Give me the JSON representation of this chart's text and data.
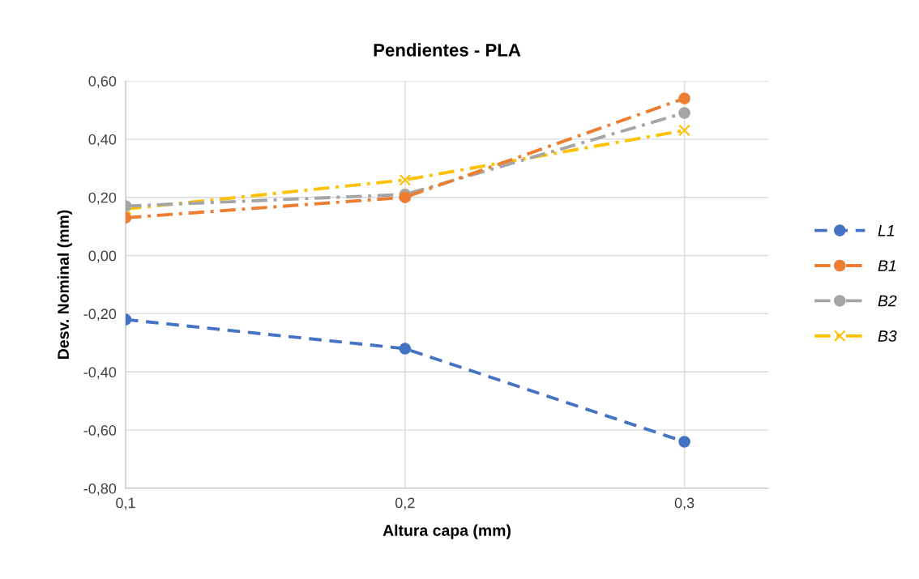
{
  "chart_data": {
    "type": "line",
    "title": "Pendientes - PLA",
    "xlabel": "Altura capa (mm)",
    "ylabel": "Desv. Nominal (mm)",
    "x": [
      0.1,
      0.2,
      0.3
    ],
    "series": [
      {
        "name": "L1",
        "color": "#4472c4",
        "values": [
          -0.22,
          -0.32,
          -0.64
        ],
        "marker": "circle",
        "line_style": "dashed"
      },
      {
        "name": "B1",
        "color": "#ed7d31",
        "values": [
          0.13,
          0.2,
          0.54
        ],
        "marker": "circle",
        "line_style": "dashdot"
      },
      {
        "name": "B2",
        "color": "#a5a5a5",
        "values": [
          0.17,
          0.21,
          0.49
        ],
        "marker": "circle",
        "line_style": "dashdot"
      },
      {
        "name": "B3",
        "color": "#ffc000",
        "values": [
          0.16,
          0.26,
          0.43
        ],
        "marker": "cross",
        "line_style": "dashdot"
      }
    ],
    "xlim": [
      0.1,
      0.33
    ],
    "xticks": [
      {
        "value": 0.1,
        "label": "0,1"
      },
      {
        "value": 0.2,
        "label": "0,2"
      },
      {
        "value": 0.3,
        "label": "0,3"
      }
    ],
    "ylim": [
      -0.8,
      0.6
    ],
    "yticks": [
      {
        "value": -0.8,
        "label": "-0,80"
      },
      {
        "value": -0.6,
        "label": "-0,60"
      },
      {
        "value": -0.4,
        "label": "-0,40"
      },
      {
        "value": -0.2,
        "label": "-0,20"
      },
      {
        "value": 0.0,
        "label": "0,00"
      },
      {
        "value": 0.2,
        "label": "0,20"
      },
      {
        "value": 0.4,
        "label": "0,40"
      },
      {
        "value": 0.6,
        "label": "0,60"
      }
    ],
    "grid": true,
    "legend": "right"
  }
}
